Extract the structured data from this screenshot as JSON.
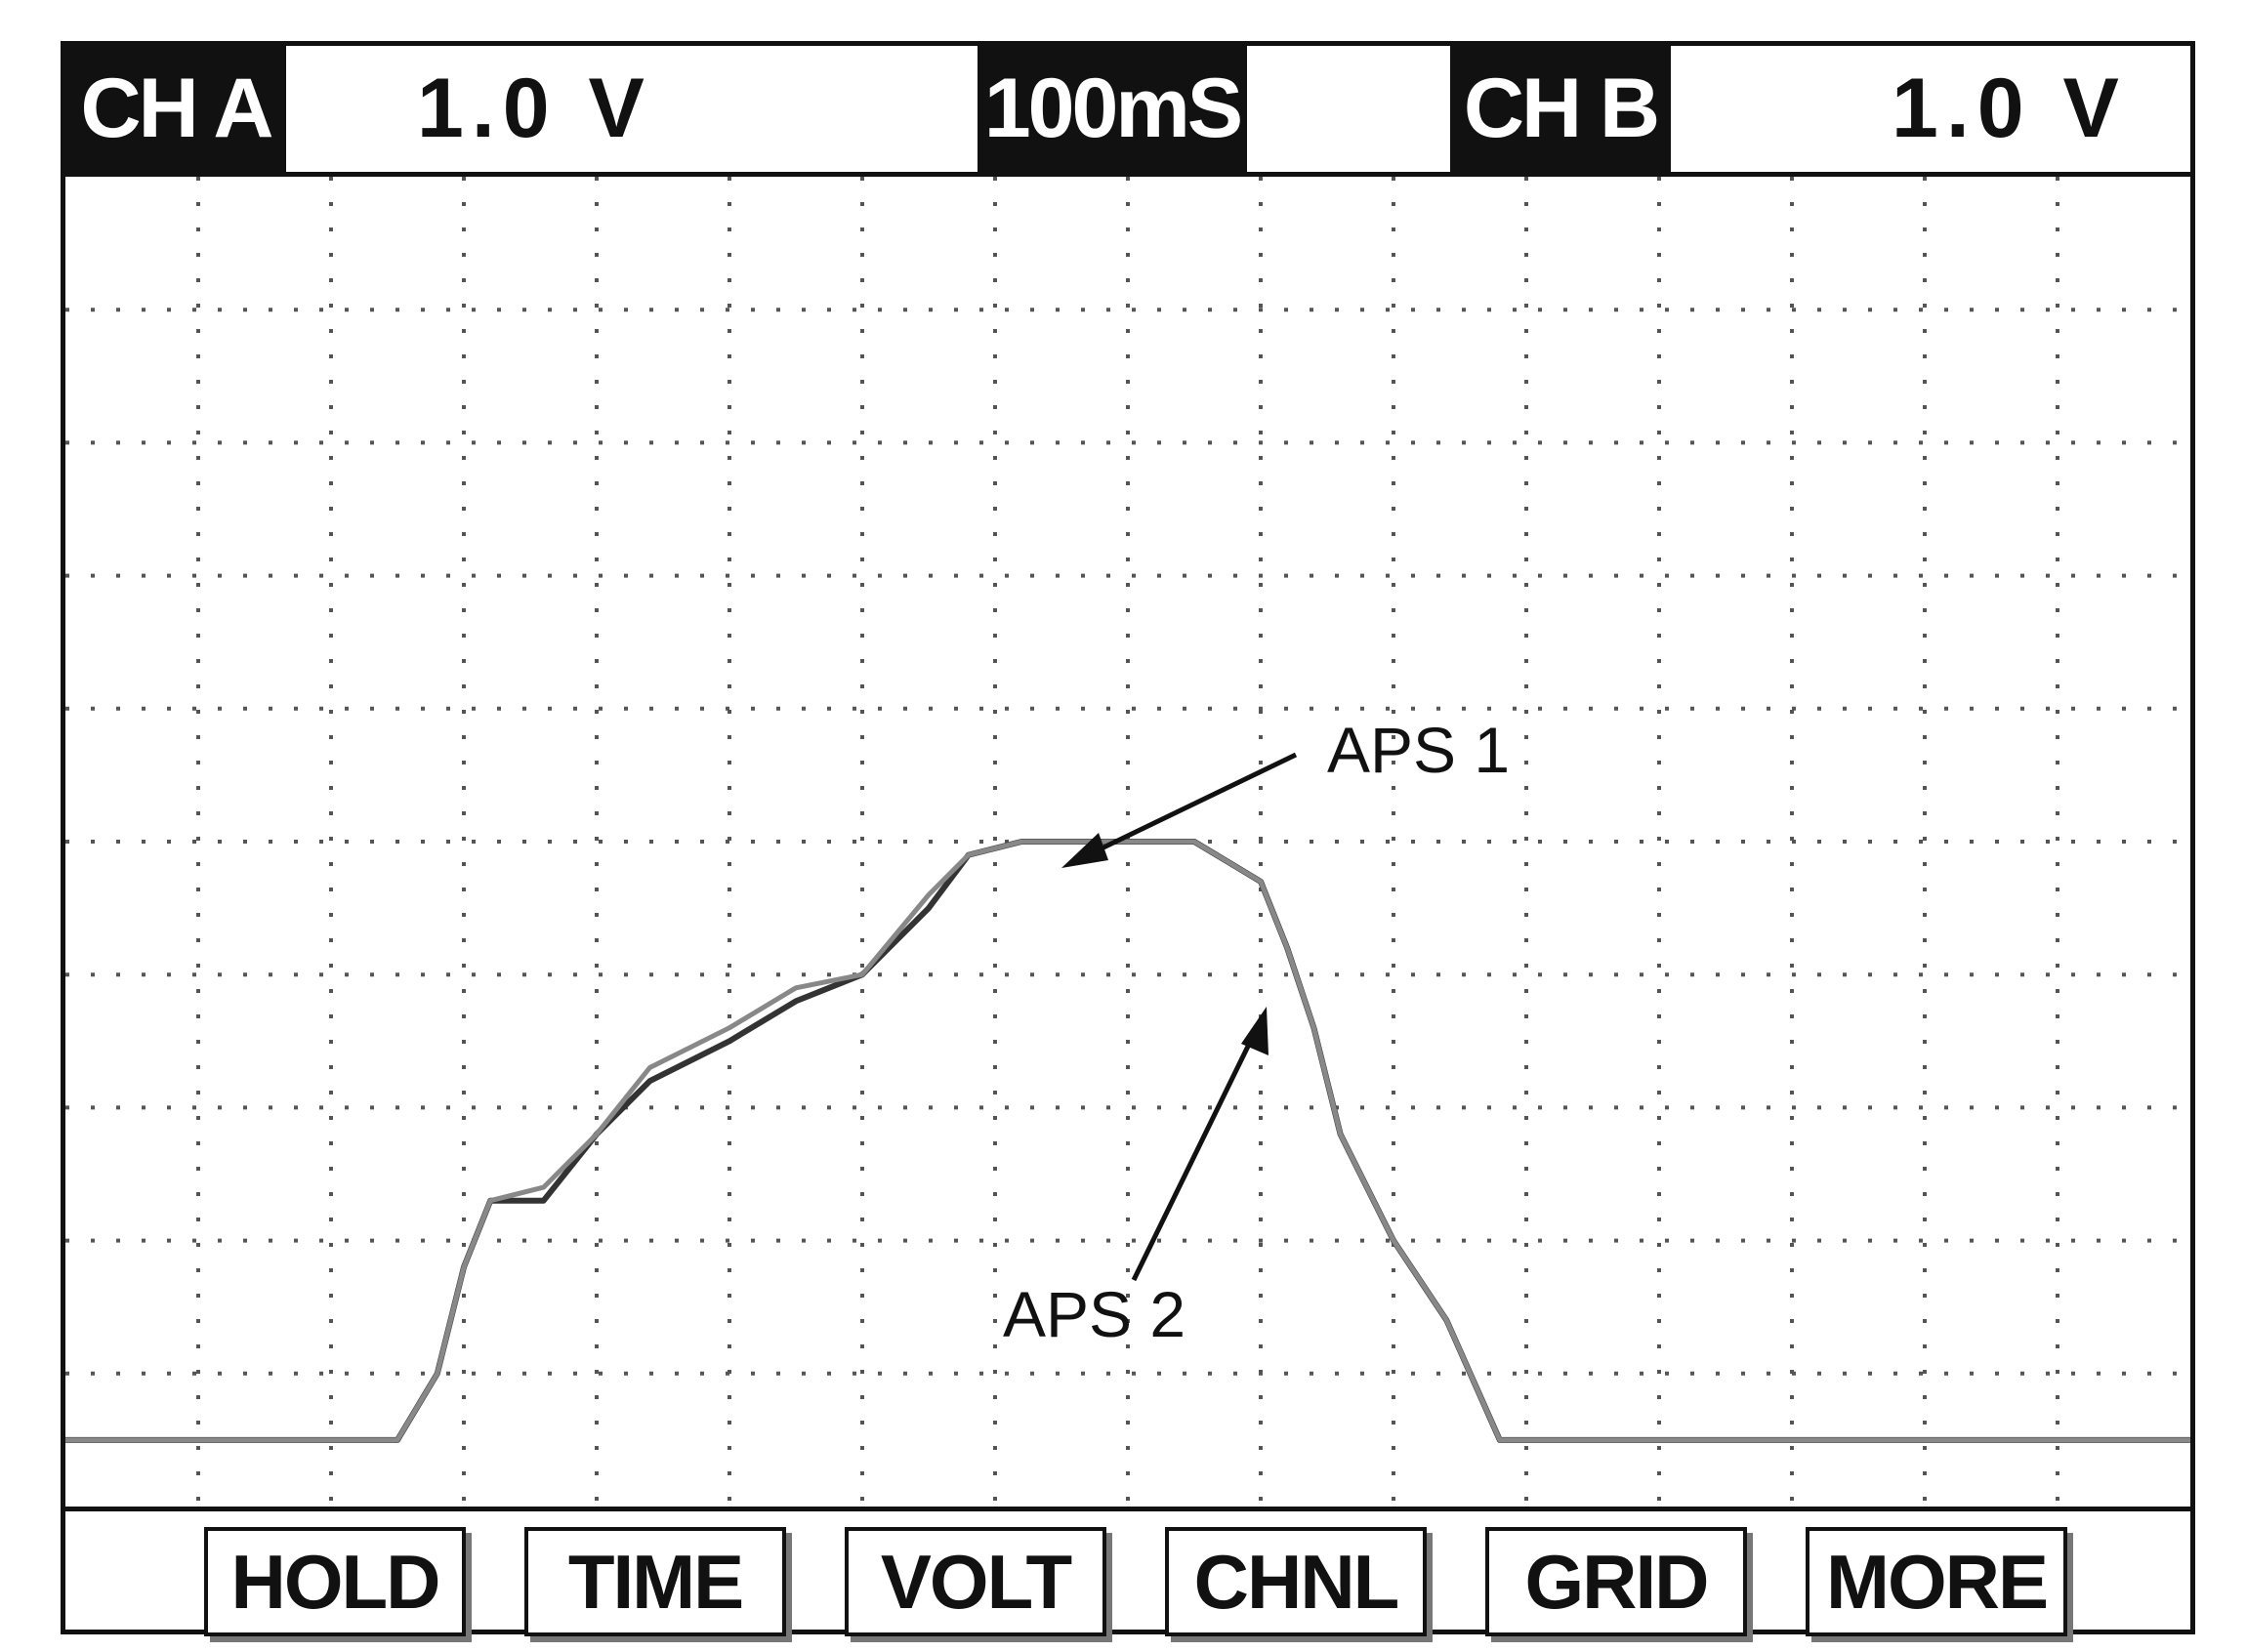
{
  "header": {
    "channel_a_label": "CH A",
    "channel_a_value": "1.0 V",
    "timebase": "100mS",
    "channel_b_label": "CH B",
    "channel_b_value": "1.0 V"
  },
  "softkeys": [
    "HOLD",
    "TIME",
    "VOLT",
    "CHNL",
    "GRID",
    "MORE"
  ],
  "annotations": {
    "aps1": "APS 1",
    "aps2": "APS 2"
  },
  "colors": {
    "trace_aps1": "#333333",
    "trace_aps2": "#888888",
    "grid": "#555555",
    "frame": "#111111"
  },
  "chart_data": {
    "type": "line",
    "x_unit": "division (100mS/div)",
    "y_unit": "division (1.0 V/div)",
    "grid": true,
    "x_divisions": 16,
    "y_divisions": 10,
    "ylim": [
      0,
      10
    ],
    "xlim": [
      0,
      16
    ],
    "series": [
      {
        "name": "APS 1",
        "x": [
          0.0,
          2.5,
          2.8,
          3.0,
          3.2,
          3.6,
          4.0,
          4.4,
          5.0,
          5.5,
          6.0,
          6.5,
          6.8,
          7.2,
          7.7,
          8.5,
          9.0,
          9.2,
          9.4,
          9.6,
          10.0,
          10.4,
          10.8,
          11.0,
          16.0
        ],
        "y": [
          0.5,
          0.5,
          1.0,
          1.8,
          2.3,
          2.3,
          2.8,
          3.2,
          3.5,
          3.8,
          4.0,
          4.5,
          4.9,
          5.0,
          5.0,
          5.0,
          4.7,
          4.2,
          3.6,
          2.8,
          2.0,
          1.4,
          0.5,
          0.5,
          0.5
        ]
      },
      {
        "name": "APS 2",
        "x": [
          0.0,
          2.5,
          2.8,
          3.0,
          3.2,
          3.6,
          4.0,
          4.4,
          5.0,
          5.5,
          6.0,
          6.5,
          6.8,
          7.2,
          7.7,
          8.5,
          9.0,
          9.2,
          9.4,
          9.6,
          10.0,
          10.4,
          10.8,
          11.0,
          16.0
        ],
        "y": [
          0.5,
          0.5,
          1.0,
          1.8,
          2.3,
          2.4,
          2.8,
          3.3,
          3.6,
          3.9,
          4.0,
          4.6,
          4.9,
          5.0,
          5.0,
          5.0,
          4.7,
          4.2,
          3.6,
          2.8,
          2.0,
          1.4,
          0.5,
          0.5,
          0.5
        ]
      }
    ]
  }
}
